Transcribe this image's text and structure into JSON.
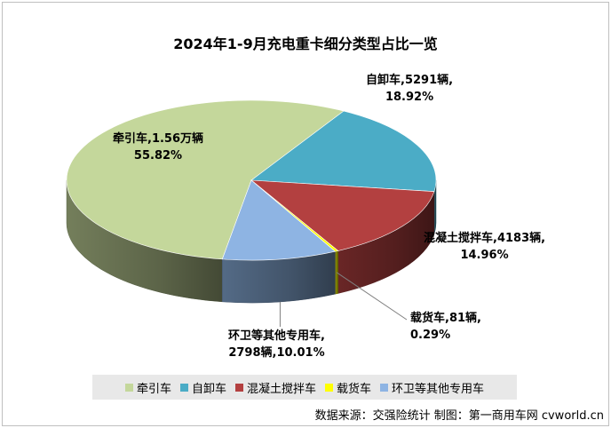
{
  "chart_data": {
    "type": "pie",
    "title": "2024年1-9月充电重卡细分类型占比一览",
    "slices": [
      {
        "name": "牵引车",
        "value": 55.82,
        "label_line1": "牵引车,1.56万辆",
        "label_line2": "55.82%",
        "color": "#c4d79b"
      },
      {
        "name": "自卸车",
        "value": 18.92,
        "label_line1": "自卸车,5291辆,",
        "label_line2": "18.92%",
        "color": "#4bacc6"
      },
      {
        "name": "混凝土搅拌车",
        "value": 14.96,
        "label_line1": "混凝土搅拌车,4183辆,",
        "label_line2": "14.96%",
        "color": "#b34040"
      },
      {
        "name": "载货车",
        "value": 0.29,
        "label_line1": "载货车,81辆,",
        "label_line2": "0.29%",
        "color": "#ffff00"
      },
      {
        "name": "环卫等其他专用车",
        "value": 10.01,
        "label_line1": "环卫等其他专用车,",
        "label_line2": "2798辆,10.01%",
        "color": "#8eb4e3"
      }
    ],
    "legend_position": "bottom"
  },
  "footer": {
    "source": "数据来源：交强险统计   制图：第一商用车网 cvworld.cn"
  }
}
